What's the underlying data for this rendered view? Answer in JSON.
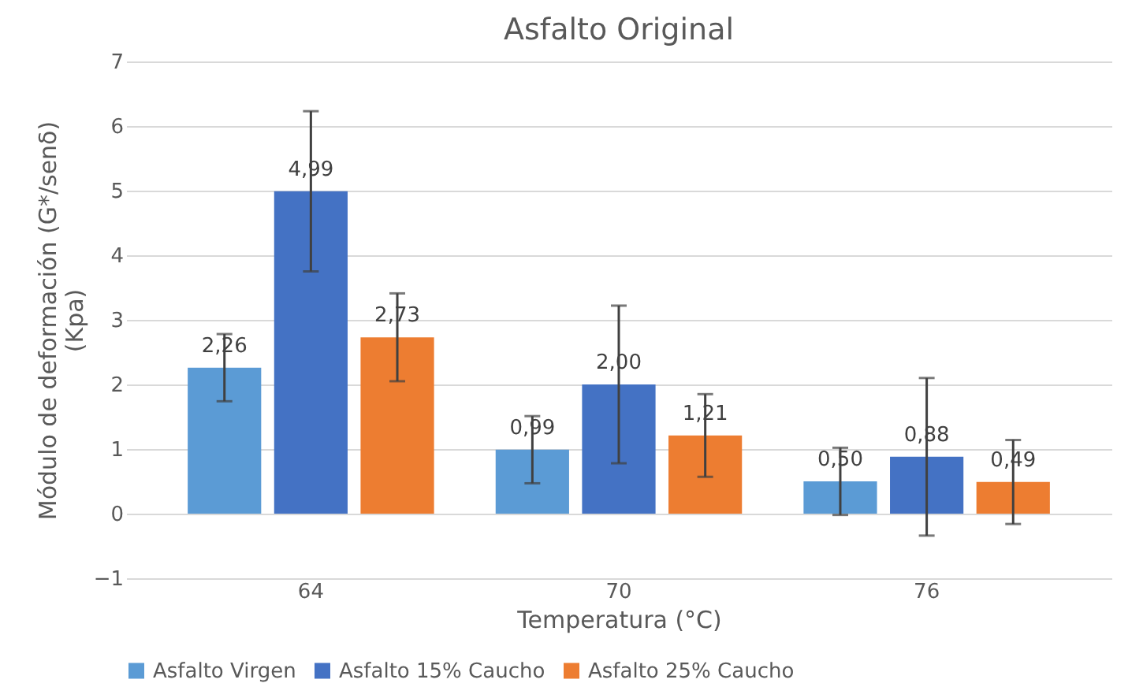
{
  "chart_data": {
    "type": "bar",
    "title": "Asfalto Original",
    "xlabel": "Temperatura (°C)",
    "ylabel": "Módulo de deformación (G*/senδ)\n(Kpa)",
    "categories": [
      "64",
      "70",
      "76"
    ],
    "series": [
      {
        "name": "Asfalto Virgen",
        "color": "#5b9bd5",
        "values": [
          2.26,
          0.99,
          0.5
        ],
        "errors": [
          0.52,
          0.52,
          0.52
        ],
        "value_labels": [
          "2,26",
          "0,99",
          "0,50"
        ]
      },
      {
        "name": "Asfalto 15% Caucho",
        "color": "#4472c4",
        "values": [
          4.99,
          2.0,
          0.88
        ],
        "errors": [
          1.24,
          1.22,
          1.22
        ],
        "value_labels": [
          "4,99",
          "2,00",
          "0,88"
        ]
      },
      {
        "name": "Asfalto 25% Caucho",
        "color": "#ed7d31",
        "values": [
          2.73,
          1.21,
          0.49
        ],
        "errors": [
          0.68,
          0.64,
          0.65
        ],
        "value_labels": [
          "2,73",
          "1,21",
          "0,49"
        ]
      }
    ],
    "ylim": [
      -1,
      7
    ],
    "yticks": [
      -1,
      0,
      1,
      2,
      3,
      4,
      5,
      6,
      7
    ],
    "grid": "y",
    "legend": "bottom"
  }
}
